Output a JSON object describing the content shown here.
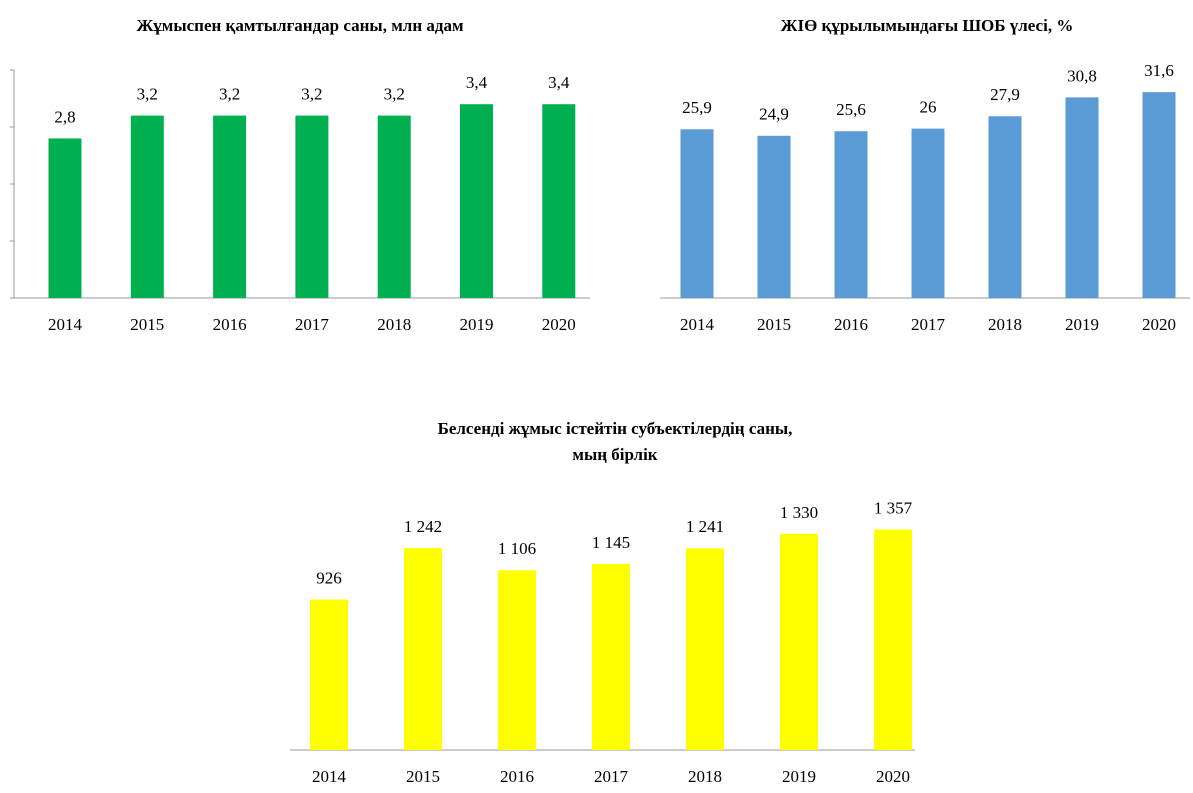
{
  "chart_data": [
    {
      "type": "bar",
      "title": [
        "Жұмыспен қамтылғандар саны, млн адам"
      ],
      "categories": [
        "2014",
        "2015",
        "2016",
        "2017",
        "2018",
        "2019",
        "2020"
      ],
      "values": [
        2.8,
        3.2,
        3.2,
        3.2,
        3.2,
        3.4,
        3.4
      ],
      "value_labels": [
        "2,8",
        "3,2",
        "3,2",
        "3,2",
        "3,2",
        "3,4",
        "3,4"
      ],
      "color": "#00b050",
      "ylim": [
        0,
        4
      ],
      "yticks": [
        0,
        1,
        2,
        3,
        4
      ]
    },
    {
      "type": "bar",
      "title": [
        "ЖІӨ құрылымындағы ШОБ үлесі, %"
      ],
      "categories": [
        "2014",
        "2015",
        "2016",
        "2017",
        "2018",
        "2019",
        "2020"
      ],
      "values": [
        25.9,
        24.9,
        25.6,
        26,
        27.9,
        30.8,
        31.6
      ],
      "value_labels": [
        "25,9",
        "24,9",
        "25,6",
        "26",
        "27,9",
        "30,8",
        "31,6"
      ],
      "color": "#5b9bd5",
      "ylim": [
        0,
        35
      ]
    },
    {
      "type": "bar",
      "title": [
        "Белсенді жұмыс істейтін субъектілердің саны,",
        "мың бірлік"
      ],
      "categories": [
        "2014",
        "2015",
        "2016",
        "2017",
        "2018",
        "2019",
        "2020"
      ],
      "values": [
        926,
        1242,
        1106,
        1145,
        1241,
        1330,
        1357
      ],
      "value_labels": [
        "926",
        "1 242",
        "1 106",
        "1 145",
        "1 241",
        "1 330",
        "1 357"
      ],
      "color": "#ffff00",
      "ylim": [
        0,
        1600
      ]
    }
  ]
}
